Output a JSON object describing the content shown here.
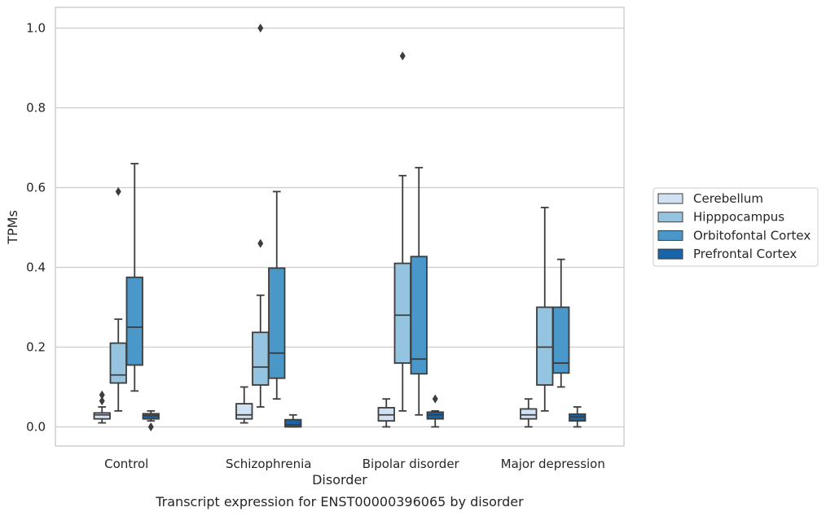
{
  "caption": "Transcript expression for ENST00000396065 by disorder",
  "colors": {
    "Cerebellum": "#d0e1f2",
    "Hipppocampus": "#94c4df",
    "Orbitofontal Cortex": "#4a98c9",
    "Prefrontal Cortex": "#1764ab",
    "edge": "#3d3d3d",
    "grid": "#cccccc"
  },
  "chart_data": {
    "type": "boxplot",
    "xlabel": "Disorder",
    "ylabel": "TPMs",
    "ylim": [
      -0.048,
      1.052
    ],
    "yticks": [
      "0.0",
      "0.2",
      "0.4",
      "0.6",
      "0.8",
      "1.0"
    ],
    "grid": true,
    "legend_position": "right",
    "categories": [
      "Control",
      "Schizophrenia",
      "Bipolar disorder",
      "Major depression"
    ],
    "series": [
      {
        "name": "Cerebellum",
        "boxes": [
          {
            "whislo": 0.01,
            "q1": 0.02,
            "med": 0.03,
            "q3": 0.035,
            "whishi": 0.05,
            "fliers": [
              0.065,
              0.08
            ]
          },
          {
            "whislo": 0.01,
            "q1": 0.02,
            "med": 0.03,
            "q3": 0.058,
            "whishi": 0.1,
            "fliers": []
          },
          {
            "whislo": 0.0,
            "q1": 0.015,
            "med": 0.03,
            "q3": 0.048,
            "whishi": 0.07,
            "fliers": []
          },
          {
            "whislo": 0.0,
            "q1": 0.02,
            "med": 0.03,
            "q3": 0.045,
            "whishi": 0.07,
            "fliers": []
          }
        ]
      },
      {
        "name": "Hipppocampus",
        "boxes": [
          {
            "whislo": 0.04,
            "q1": 0.11,
            "med": 0.13,
            "q3": 0.21,
            "whishi": 0.27,
            "fliers": [
              0.59
            ]
          },
          {
            "whislo": 0.05,
            "q1": 0.105,
            "med": 0.15,
            "q3": 0.237,
            "whishi": 0.33,
            "fliers": [
              0.46,
              1.0
            ]
          },
          {
            "whislo": 0.04,
            "q1": 0.16,
            "med": 0.28,
            "q3": 0.41,
            "whishi": 0.63,
            "fliers": [
              0.93
            ]
          },
          {
            "whislo": 0.04,
            "q1": 0.105,
            "med": 0.2,
            "q3": 0.3,
            "whishi": 0.55,
            "fliers": []
          }
        ]
      },
      {
        "name": "Orbitofontal Cortex",
        "boxes": [
          {
            "whislo": 0.09,
            "q1": 0.155,
            "med": 0.25,
            "q3": 0.375,
            "whishi": 0.66,
            "fliers": []
          },
          {
            "whislo": 0.07,
            "q1": 0.122,
            "med": 0.185,
            "q3": 0.398,
            "whishi": 0.59,
            "fliers": []
          },
          {
            "whislo": 0.03,
            "q1": 0.133,
            "med": 0.17,
            "q3": 0.427,
            "whishi": 0.65,
            "fliers": []
          },
          {
            "whislo": 0.1,
            "q1": 0.135,
            "med": 0.16,
            "q3": 0.3,
            "whishi": 0.42,
            "fliers": []
          }
        ]
      },
      {
        "name": "Prefrontal Cortex",
        "boxes": [
          {
            "whislo": 0.015,
            "q1": 0.02,
            "med": 0.028,
            "q3": 0.033,
            "whishi": 0.04,
            "fliers": [
              0.0
            ]
          },
          {
            "whislo": 0.0,
            "q1": 0.0,
            "med": 0.005,
            "q3": 0.018,
            "whishi": 0.03,
            "fliers": []
          },
          {
            "whislo": 0.0,
            "q1": 0.02,
            "med": 0.03,
            "q3": 0.037,
            "whishi": 0.04,
            "fliers": [
              0.07
            ]
          },
          {
            "whislo": 0.0,
            "q1": 0.015,
            "med": 0.025,
            "q3": 0.032,
            "whishi": 0.05,
            "fliers": []
          }
        ]
      }
    ]
  }
}
